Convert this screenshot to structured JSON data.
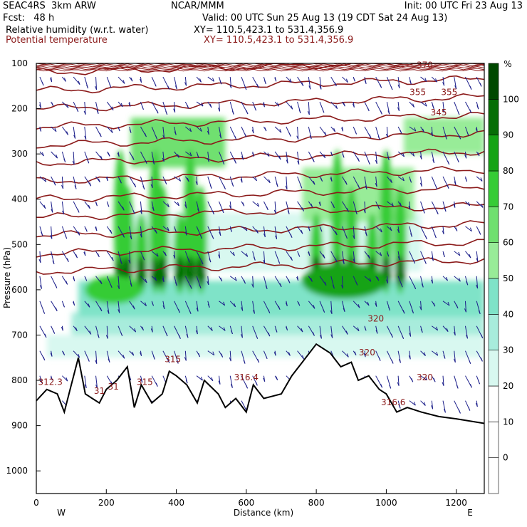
{
  "header": {
    "model": "SEAC4RS  3km ARW",
    "center": "NCAR/MMM",
    "init": "Init: 00 UTC Fri 23 Aug 13",
    "fcst": "Fcst:   48 h",
    "valid": "Valid: 00 UTC Sun 25 Aug 13 (19 CDT Sat 24 Aug 13)",
    "field1": "Relative humidity (w.r.t. water)",
    "xy1": "XY= 110.5,423.1 to 531.4,356.9",
    "field2": "Potential temperature",
    "xy2": "XY= 110.5,423.1 to 531.4,356.9"
  },
  "chart_data": {
    "type": "heatmap",
    "xlabel": "Distance (km)",
    "ylabel": "Pressure (hPa)",
    "xlim": [
      0,
      1280
    ],
    "ylim": [
      1050,
      100
    ],
    "x_ticks": [
      0,
      200,
      400,
      600,
      800,
      1000,
      1200
    ],
    "y_ticks": [
      100,
      200,
      300,
      400,
      500,
      600,
      700,
      800,
      900,
      1000
    ],
    "x_end_labels": {
      "left": "W",
      "right": "E"
    },
    "colorbar": {
      "unit": "%",
      "levels": [
        0,
        10,
        20,
        30,
        40,
        50,
        60,
        70,
        80,
        90,
        100
      ],
      "colors": [
        "#ffffff",
        "#ffffff",
        "#ffffff",
        "#d8f8f0",
        "#a8ecdc",
        "#7fe3c8",
        "#98ec98",
        "#6fe06f",
        "#36cc36",
        "#14a314",
        "#066e06",
        "#004800"
      ]
    },
    "contour_labels": [
      "370",
      "355",
      "355",
      "345",
      "320",
      "320",
      "320",
      "316.4",
      "315",
      "315",
      "316.6",
      "312.3",
      "31",
      "31"
    ],
    "theta_levels": [
      312,
      314,
      316,
      318,
      320,
      325,
      330,
      335,
      340,
      345,
      355,
      370
    ],
    "terrain_km_hpa": [
      [
        0,
        845
      ],
      [
        30,
        820
      ],
      [
        60,
        830
      ],
      [
        80,
        870
      ],
      [
        100,
        810
      ],
      [
        120,
        750
      ],
      [
        140,
        830
      ],
      [
        160,
        840
      ],
      [
        180,
        850
      ],
      [
        200,
        820
      ],
      [
        230,
        800
      ],
      [
        260,
        770
      ],
      [
        280,
        860
      ],
      [
        300,
        810
      ],
      [
        330,
        850
      ],
      [
        360,
        830
      ],
      [
        380,
        780
      ],
      [
        400,
        790
      ],
      [
        430,
        810
      ],
      [
        460,
        850
      ],
      [
        480,
        800
      ],
      [
        520,
        830
      ],
      [
        540,
        860
      ],
      [
        570,
        840
      ],
      [
        600,
        870
      ],
      [
        620,
        810
      ],
      [
        650,
        840
      ],
      [
        700,
        830
      ],
      [
        730,
        790
      ],
      [
        760,
        760
      ],
      [
        800,
        720
      ],
      [
        840,
        740
      ],
      [
        870,
        770
      ],
      [
        900,
        760
      ],
      [
        920,
        800
      ],
      [
        950,
        790
      ],
      [
        980,
        820
      ],
      [
        1000,
        830
      ],
      [
        1030,
        870
      ],
      [
        1060,
        860
      ],
      [
        1100,
        870
      ],
      [
        1150,
        880
      ],
      [
        1200,
        885
      ],
      [
        1280,
        895
      ]
    ],
    "moist_cores_km": [
      240,
      260,
      300,
      340,
      360,
      410,
      440,
      470,
      800,
      860,
      900,
      960,
      1000,
      1040
    ]
  }
}
